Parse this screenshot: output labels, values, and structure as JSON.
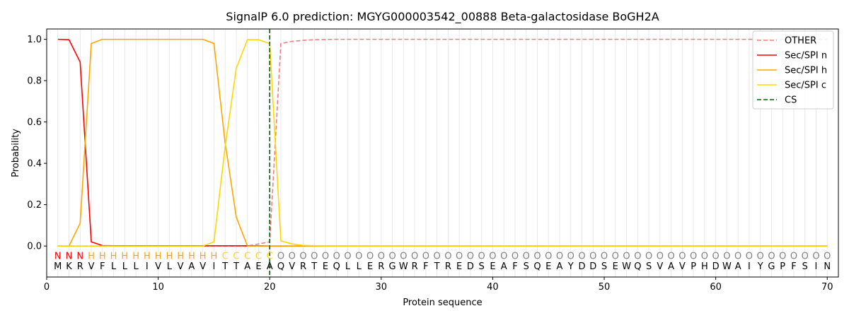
{
  "chart_data": {
    "type": "line",
    "title": "SignalP 6.0 prediction: MGYG000003542_00888 Beta-galactosidase BoGH2A",
    "xlabel": "Protein sequence",
    "ylabel": "Probability",
    "xlim": [
      0,
      71
    ],
    "ylim": [
      -0.15,
      1.05
    ],
    "x_ticks": [
      0,
      10,
      20,
      30,
      40,
      50,
      60,
      70
    ],
    "y_ticks": [
      0.0,
      0.2,
      0.4,
      0.6,
      0.8,
      1.0
    ],
    "sequence": [
      "M",
      "K",
      "R",
      "V",
      "F",
      "L",
      "L",
      "L",
      "I",
      "V",
      "L",
      "V",
      "A",
      "V",
      "I",
      "T",
      "T",
      "A",
      "E",
      "A",
      "Q",
      "V",
      "R",
      "T",
      "E",
      "Q",
      "L",
      "L",
      "E",
      "R",
      "G",
      "W",
      "R",
      "F",
      "T",
      "R",
      "E",
      "D",
      "S",
      "E",
      "A",
      "F",
      "S",
      "Q",
      "E",
      "A",
      "Y",
      "D",
      "D",
      "S",
      "E",
      "W",
      "Q",
      "S",
      "V",
      "A",
      "V",
      "P",
      "H",
      "D",
      "W",
      "A",
      "I",
      "Y",
      "G",
      "P",
      "F",
      "S",
      "I",
      "N"
    ],
    "predicted_labels": [
      "N",
      "N",
      "N",
      "H",
      "H",
      "H",
      "H",
      "H",
      "H",
      "H",
      "H",
      "H",
      "H",
      "H",
      "H",
      "C",
      "C",
      "C",
      "C",
      "C",
      "O",
      "O",
      "O",
      "O",
      "O",
      "O",
      "O",
      "O",
      "O",
      "O",
      "O",
      "O",
      "O",
      "O",
      "O",
      "O",
      "O",
      "O",
      "O",
      "O",
      "O",
      "O",
      "O",
      "O",
      "O",
      "O",
      "O",
      "O",
      "O",
      "O",
      "O",
      "O",
      "O",
      "O",
      "O",
      "O",
      "O",
      "O",
      "O",
      "O",
      "O",
      "O",
      "O",
      "O",
      "O",
      "O",
      "O",
      "O",
      "O",
      "O"
    ],
    "label_colors": {
      "N": "#ff0000",
      "H": "#ffa500",
      "C": "#ffd700",
      "O": "#808080"
    },
    "series": [
      {
        "name": "OTHER",
        "color": "#f08080",
        "style": "dashed",
        "values": [
          0,
          0,
          0,
          0,
          0,
          0,
          0,
          0,
          0,
          0,
          0,
          0,
          0,
          0,
          0,
          0,
          0,
          0,
          0.01,
          0.02,
          0.98,
          0.99,
          0.995,
          0.998,
          0.999,
          1,
          1,
          1,
          1,
          1,
          1,
          1,
          1,
          1,
          1,
          1,
          1,
          1,
          1,
          1,
          1,
          1,
          1,
          1,
          1,
          1,
          1,
          1,
          1,
          1,
          1,
          1,
          1,
          1,
          1,
          1,
          1,
          1,
          1,
          1,
          1,
          1,
          1,
          1,
          1,
          1,
          1,
          1,
          1,
          1
        ]
      },
      {
        "name": "Sec/SPI n",
        "color": "#ff0000",
        "style": "solid",
        "values": [
          1.0,
          0.998,
          0.89,
          0.02,
          0.002,
          0.001,
          0.001,
          0.001,
          0.001,
          0.001,
          0.001,
          0.001,
          0.001,
          0.001,
          0.001,
          0.001,
          0.001,
          0.001,
          0.001,
          0,
          0,
          0,
          0,
          0,
          0,
          0,
          0,
          0,
          0,
          0,
          0,
          0,
          0,
          0,
          0,
          0,
          0,
          0,
          0,
          0,
          0,
          0,
          0,
          0,
          0,
          0,
          0,
          0,
          0,
          0,
          0,
          0,
          0,
          0,
          0,
          0,
          0,
          0,
          0,
          0,
          0,
          0,
          0,
          0,
          0,
          0,
          0,
          0,
          0,
          0
        ]
      },
      {
        "name": "Sec/SPI h",
        "color": "#ffa500",
        "style": "solid",
        "values": [
          0,
          0,
          0.11,
          0.98,
          1.0,
          1.0,
          1.0,
          1.0,
          1.0,
          1.0,
          1.0,
          1.0,
          1.0,
          1.0,
          0.98,
          0.5,
          0.14,
          0.0,
          0.0,
          0.0,
          0,
          0,
          0,
          0,
          0,
          0,
          0,
          0,
          0,
          0,
          0,
          0,
          0,
          0,
          0,
          0,
          0,
          0,
          0,
          0,
          0,
          0,
          0,
          0,
          0,
          0,
          0,
          0,
          0,
          0,
          0,
          0,
          0,
          0,
          0,
          0,
          0,
          0,
          0,
          0,
          0,
          0,
          0,
          0,
          0,
          0,
          0,
          0,
          0,
          0
        ]
      },
      {
        "name": "Sec/SPI c",
        "color": "#ffd700",
        "style": "solid",
        "values": [
          0,
          0,
          0,
          0,
          0,
          0,
          0,
          0,
          0,
          0,
          0,
          0,
          0,
          0,
          0.02,
          0.48,
          0.86,
          0.998,
          0.998,
          0.98,
          0.025,
          0.01,
          0.003,
          0.001,
          0,
          0,
          0,
          0,
          0,
          0,
          0,
          0,
          0,
          0,
          0,
          0,
          0,
          0,
          0,
          0,
          0,
          0,
          0,
          0,
          0,
          0,
          0,
          0,
          0,
          0,
          0,
          0,
          0,
          0,
          0,
          0,
          0,
          0,
          0,
          0,
          0,
          0,
          0,
          0,
          0,
          0,
          0,
          0,
          0,
          0
        ]
      }
    ],
    "cs": {
      "name": "CS",
      "x": 20,
      "color": "#006400",
      "style": "dashed"
    },
    "legend_position": "top-right",
    "grid": "vertical"
  }
}
